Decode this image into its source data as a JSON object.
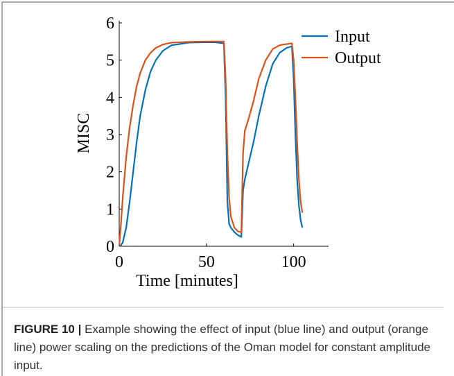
{
  "chart_data": {
    "type": "line",
    "x_label": "Time [minutes]",
    "y_label": "MISC",
    "x": [
      0,
      1,
      2,
      4,
      6,
      8,
      10,
      12,
      15,
      18,
      21,
      25,
      30,
      40,
      50,
      55,
      60,
      61,
      62,
      63,
      64,
      66,
      68,
      70,
      71,
      72,
      74,
      77,
      80,
      84,
      88,
      92,
      96,
      99,
      100,
      101,
      102,
      103,
      104,
      105
    ],
    "series": [
      {
        "name": "Input",
        "color": "#0072bd",
        "values": [
          0,
          0.03,
          0.1,
          0.5,
          1.2,
          2.0,
          2.8,
          3.5,
          4.2,
          4.7,
          5.0,
          5.25,
          5.4,
          5.47,
          5.48,
          5.48,
          5.45,
          4.0,
          1.2,
          0.6,
          0.5,
          0.38,
          0.3,
          0.25,
          1.5,
          1.8,
          2.2,
          2.8,
          3.5,
          4.3,
          4.9,
          5.2,
          5.33,
          5.37,
          4.5,
          3.0,
          1.8,
          1.1,
          0.7,
          0.5
        ]
      },
      {
        "name": "Output",
        "color": "#d95319",
        "values": [
          0,
          0.6,
          1.3,
          2.4,
          3.2,
          3.8,
          4.3,
          4.65,
          5.0,
          5.2,
          5.33,
          5.42,
          5.47,
          5.49,
          5.5,
          5.5,
          5.5,
          4.5,
          2.5,
          1.3,
          0.8,
          0.5,
          0.4,
          0.38,
          2.5,
          3.1,
          3.4,
          3.9,
          4.5,
          5.0,
          5.3,
          5.4,
          5.43,
          5.45,
          5.0,
          4.0,
          2.8,
          1.8,
          1.2,
          0.9
        ]
      }
    ],
    "xlim": [
      0,
      120
    ],
    "xticks": [
      0,
      50,
      100
    ],
    "ylim": [
      0,
      6
    ],
    "yticks": [
      0,
      1,
      2,
      3,
      4,
      5,
      6
    ],
    "legend": "top right"
  },
  "caption": {
    "label": "FIGURE 10 |",
    "text": "Example showing the effect of input (blue line) and output (orange line) power scaling on the predictions of the Oman model for constant amplitude input."
  }
}
